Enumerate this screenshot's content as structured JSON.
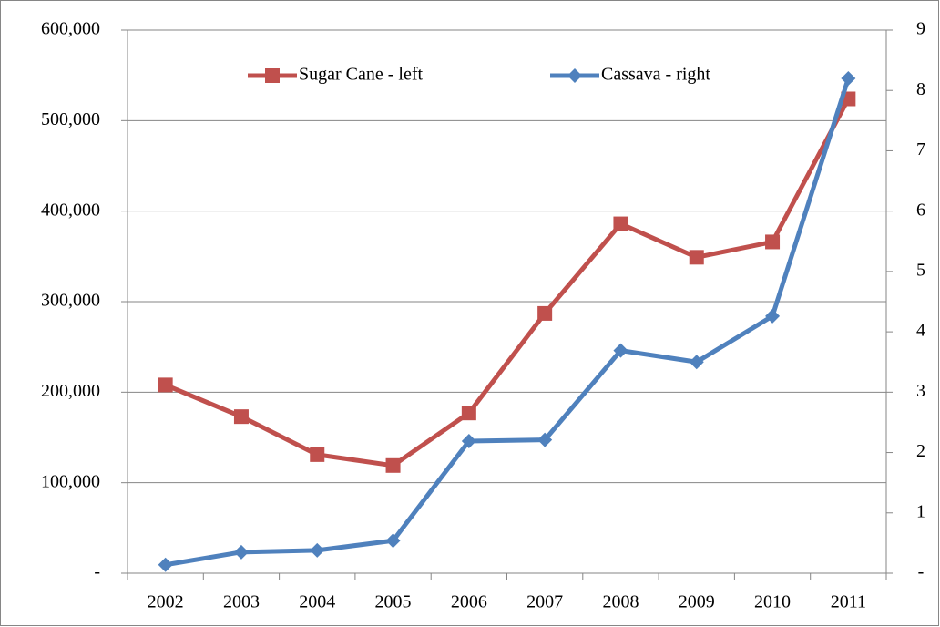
{
  "chart_data": {
    "type": "line",
    "categories": [
      "2002",
      "2003",
      "2004",
      "2005",
      "2006",
      "2007",
      "2008",
      "2009",
      "2010",
      "2011"
    ],
    "series": [
      {
        "name": "Sugar Cane - left",
        "color": "#c0504d",
        "marker": "square",
        "values": [
          208000,
          173000,
          131000,
          119000,
          177000,
          287000,
          386000,
          349000,
          366000,
          524000
        ]
      },
      {
        "name": "Cassava - right",
        "color": "#4f81bd",
        "marker": "diamond",
        "axis": "y2",
        "values": [
          0.14,
          0.35,
          0.38,
          0.54,
          2.19,
          2.21,
          3.69,
          3.5,
          4.26,
          8.2
        ]
      }
    ],
    "ylim": [
      0,
      600000
    ],
    "yticks": [
      {
        "value": 0,
        "label": "-"
      },
      {
        "value": 100000,
        "label": "100,000"
      },
      {
        "value": 200000,
        "label": "200,000"
      },
      {
        "value": 300000,
        "label": "300,000"
      },
      {
        "value": 400000,
        "label": "400,000"
      },
      {
        "value": 500000,
        "label": "500,000"
      },
      {
        "value": 600000,
        "label": "600,000"
      }
    ],
    "y2lim": [
      0,
      9
    ],
    "y2ticks": [
      {
        "value": 0,
        "label": "-"
      },
      1,
      2,
      3,
      4,
      5,
      6,
      7,
      8,
      9
    ],
    "grid": true,
    "legend": "top"
  }
}
